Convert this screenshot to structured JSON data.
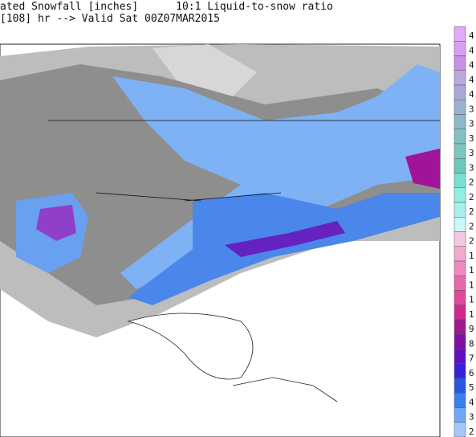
{
  "header": {
    "line1": "ated Snowfall [inches]      10:1 Liquid-to-snow ratio",
    "line2": "[108] hr --> Valid Sat 00Z07MAR2015"
  },
  "legend": {
    "labels": [
      "4",
      "4",
      "4",
      "4",
      "4",
      "3",
      "3",
      "3",
      "3",
      "3",
      "2",
      "2",
      "2",
      "2",
      "2",
      "1",
      "1",
      "1",
      "1",
      "1",
      "9",
      "8",
      "7",
      "6",
      "5",
      "4",
      "3",
      "2"
    ],
    "colors": [
      "#e4a8f4",
      "#d8a0f0",
      "#c890e8",
      "#b8a8e0",
      "#a8a8d8",
      "#9cb0d0",
      "#8cb8c8",
      "#84c0c0",
      "#7cc8c0",
      "#6cc8b8",
      "#78e0d0",
      "#90f0e0",
      "#a8f0f0",
      "#c8f8f8",
      "#f8c8e0",
      "#f4a8d0",
      "#f088c0",
      "#e868b0",
      "#e048a0",
      "#d02890",
      "#a01890",
      "#8010a0",
      "#6010c0",
      "#3820d8",
      "#2858e0",
      "#3c80f0",
      "#70a8f8",
      "#a0c8ff"
    ]
  }
}
